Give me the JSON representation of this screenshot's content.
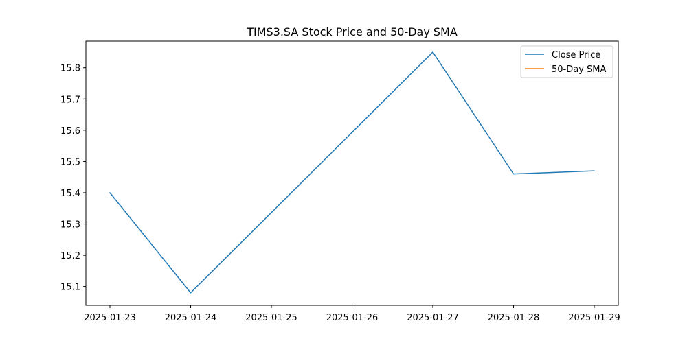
{
  "chart_data": {
    "type": "line",
    "title": "TIMS3.SA Stock Price and 50-Day SMA",
    "xlabel": "",
    "ylabel": "",
    "x": [
      "2025-01-23",
      "2025-01-24",
      "2025-01-25",
      "2025-01-26",
      "2025-01-27",
      "2025-01-28",
      "2025-01-29"
    ],
    "x_ticks": [
      "2025-01-23",
      "2025-01-24",
      "2025-01-25",
      "2025-01-26",
      "2025-01-27",
      "2025-01-28",
      "2025-01-29"
    ],
    "ylim": [
      15.04,
      15.885
    ],
    "y_ticks": [
      "15.1",
      "15.2",
      "15.3",
      "15.4",
      "15.5",
      "15.6",
      "15.7",
      "15.8"
    ],
    "grid": false,
    "legend_position": "top-right",
    "series": [
      {
        "name": "Close Price",
        "color": "#1f77b4",
        "points": [
          {
            "x": "2025-01-23",
            "y": 15.4
          },
          {
            "x": "2025-01-24",
            "y": 15.08
          },
          {
            "x": "2025-01-27",
            "y": 15.85
          },
          {
            "x": "2025-01-28",
            "y": 15.46
          },
          {
            "x": "2025-01-29",
            "y": 15.47
          }
        ]
      },
      {
        "name": "50-Day SMA",
        "color": "#ff7f0e",
        "points": []
      }
    ]
  }
}
